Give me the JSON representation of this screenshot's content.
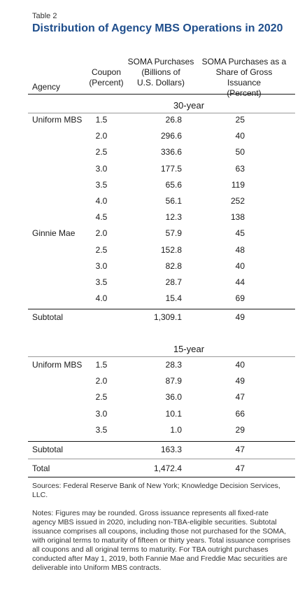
{
  "table_label": "Table 2",
  "title": "Distribution of Agency MBS Operations in 2020",
  "headers": {
    "agency": "Agency",
    "coupon": [
      "Coupon",
      "(Percent)"
    ],
    "soma": [
      "SOMA Purchases",
      "(Billions of",
      "U.S. Dollars)"
    ],
    "share": [
      "SOMA Purchases as a",
      "Share of Gross Issuance",
      "(Percent)"
    ]
  },
  "sections": [
    {
      "label": "30-year",
      "rows": [
        {
          "agency": "Uniform MBS",
          "coupon": "1.5",
          "soma": "26.8",
          "share": "25"
        },
        {
          "agency": "",
          "coupon": "2.0",
          "soma": "296.6",
          "share": "40"
        },
        {
          "agency": "",
          "coupon": "2.5",
          "soma": "336.6",
          "share": "50"
        },
        {
          "agency": "",
          "coupon": "3.0",
          "soma": "177.5",
          "share": "63"
        },
        {
          "agency": "",
          "coupon": "3.5",
          "soma": "65.6",
          "share": "119"
        },
        {
          "agency": "",
          "coupon": "4.0",
          "soma": "56.1",
          "share": "252"
        },
        {
          "agency": "",
          "coupon": "4.5",
          "soma": "12.3",
          "share": "138"
        },
        {
          "agency": "Ginnie Mae",
          "coupon": "2.0",
          "soma": "57.9",
          "share": "45"
        },
        {
          "agency": "",
          "coupon": "2.5",
          "soma": "152.8",
          "share": "48"
        },
        {
          "agency": "",
          "coupon": "3.0",
          "soma": "82.8",
          "share": "40"
        },
        {
          "agency": "",
          "coupon": "3.5",
          "soma": "28.7",
          "share": "44"
        },
        {
          "agency": "",
          "coupon": "4.0",
          "soma": "15.4",
          "share": "69"
        }
      ],
      "subtotal": {
        "label": "Subtotal",
        "soma": "1,309.1",
        "share": "49"
      }
    },
    {
      "label": "15-year",
      "rows": [
        {
          "agency": "Uniform MBS",
          "coupon": "1.5",
          "soma": "28.3",
          "share": "40"
        },
        {
          "agency": "",
          "coupon": "2.0",
          "soma": "87.9",
          "share": "49"
        },
        {
          "agency": "",
          "coupon": "2.5",
          "soma": "36.0",
          "share": "47"
        },
        {
          "agency": "",
          "coupon": "3.0",
          "soma": "10.1",
          "share": "66"
        },
        {
          "agency": "",
          "coupon": "3.5",
          "soma": "1.0",
          "share": "29"
        }
      ],
      "subtotal": {
        "label": "Subtotal",
        "soma": "163.3",
        "share": "47"
      }
    }
  ],
  "total": {
    "label": "Total",
    "soma": "1,472.4",
    "share": "47"
  },
  "sources": "Sources: Federal Reserve Bank of New York; Knowledge Decision Services, LLC.",
  "notes": "Notes: Figures may be rounded. Gross issuance represents all fixed-rate agency MBS issued in 2020, including non-TBA-eligible securities. Subtotal issuance comprises all coupons, including those not purchased for the SOMA, with original terms to maturity of fifteen or thirty years. Total issuance comprises all coupons and all original terms to maturity. For TBA outright purchases conducted after May 1, 2019, both Fannie Mae and Freddie Mac securities are deliverable into Uniform MBS contracts."
}
